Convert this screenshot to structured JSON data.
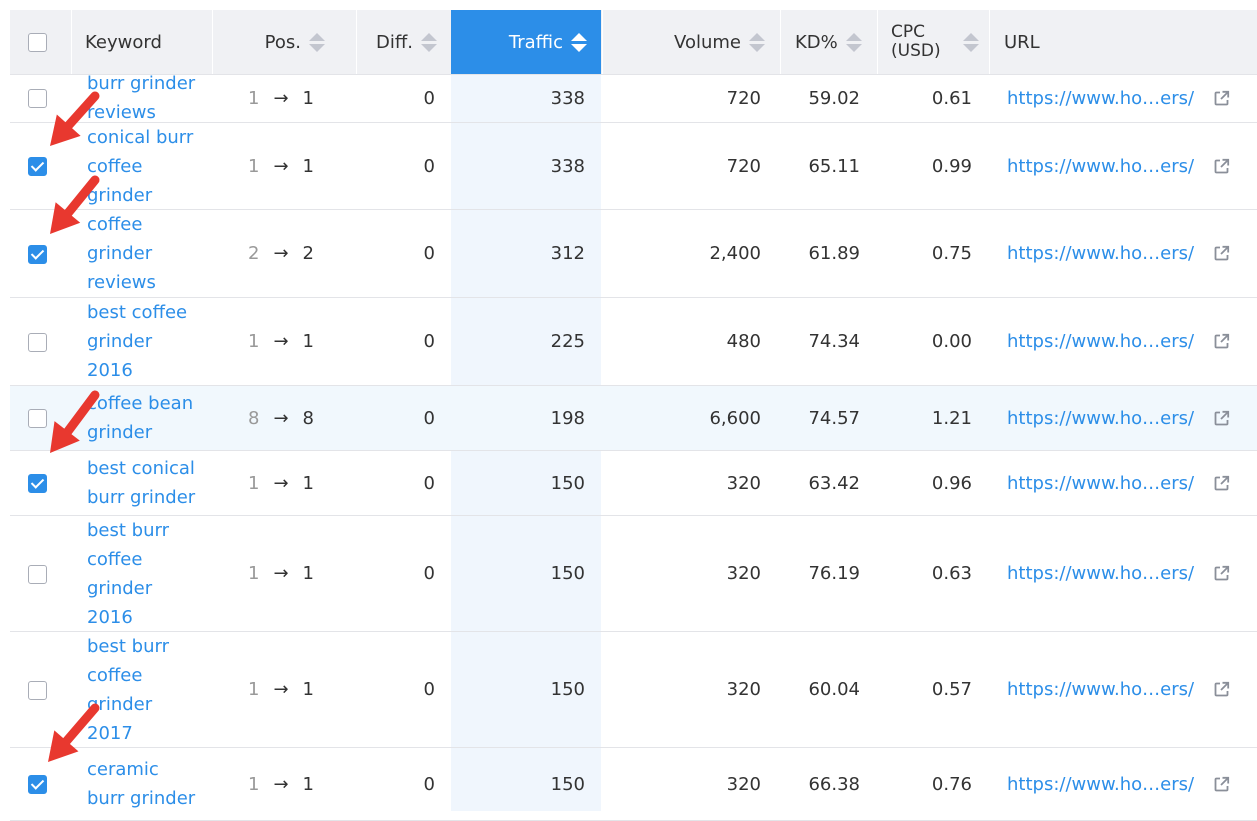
{
  "header": {
    "keyword": "Keyword",
    "pos": "Pos.",
    "diff": "Diff.",
    "traffic": "Traffic",
    "volume": "Volume",
    "kd": "KD%",
    "cpc_line1": "CPC",
    "cpc_line2": "(USD)",
    "url": "URL"
  },
  "rows": [
    {
      "keyword": "burr grinder reviews",
      "kw_lines": [
        "burr grinder",
        "reviews"
      ],
      "pos_from": "1",
      "pos_to": "1",
      "diff": "0",
      "traffic": "338",
      "volume": "720",
      "kd": "59.02",
      "cpc": "0.61",
      "url": "https://www.ho…ers/",
      "checked": false
    },
    {
      "keyword": "conical burr coffee grinder",
      "kw_lines": [
        "conical burr",
        "coffee",
        "grinder"
      ],
      "pos_from": "1",
      "pos_to": "1",
      "diff": "0",
      "traffic": "338",
      "volume": "720",
      "kd": "65.11",
      "cpc": "0.99",
      "url": "https://www.ho…ers/",
      "checked": true
    },
    {
      "keyword": "coffee grinder reviews",
      "kw_lines": [
        "coffee",
        "grinder",
        "reviews"
      ],
      "pos_from": "2",
      "pos_to": "2",
      "diff": "0",
      "traffic": "312",
      "volume": "2,400",
      "kd": "61.89",
      "cpc": "0.75",
      "url": "https://www.ho…ers/",
      "checked": true
    },
    {
      "keyword": "best coffee grinder 2016",
      "kw_lines": [
        "best coffee",
        "grinder",
        "2016"
      ],
      "pos_from": "1",
      "pos_to": "1",
      "diff": "0",
      "traffic": "225",
      "volume": "480",
      "kd": "74.34",
      "cpc": "0.00",
      "url": "https://www.ho…ers/",
      "checked": false
    },
    {
      "keyword": "coffee bean grinder",
      "kw_lines": [
        "coffee bean",
        "grinder"
      ],
      "pos_from": "8",
      "pos_to": "8",
      "diff": "0",
      "traffic": "198",
      "volume": "6,600",
      "kd": "74.57",
      "cpc": "1.21",
      "url": "https://www.ho…ers/",
      "checked": false
    },
    {
      "keyword": "best conical burr grinder",
      "kw_lines": [
        "best conical",
        "burr grinder"
      ],
      "pos_from": "1",
      "pos_to": "1",
      "diff": "0",
      "traffic": "150",
      "volume": "320",
      "kd": "63.42",
      "cpc": "0.96",
      "url": "https://www.ho…ers/",
      "checked": true
    },
    {
      "keyword": "best burr coffee grinder 2016",
      "kw_lines": [
        "best burr",
        "coffee",
        "grinder",
        "2016"
      ],
      "pos_from": "1",
      "pos_to": "1",
      "diff": "0",
      "traffic": "150",
      "volume": "320",
      "kd": "76.19",
      "cpc": "0.63",
      "url": "https://www.ho…ers/",
      "checked": false
    },
    {
      "keyword": "best burr coffee grinder 2017",
      "kw_lines": [
        "best burr",
        "coffee",
        "grinder",
        "2017"
      ],
      "pos_from": "1",
      "pos_to": "1",
      "diff": "0",
      "traffic": "150",
      "volume": "320",
      "kd": "60.04",
      "cpc": "0.57",
      "url": "https://www.ho…ers/",
      "checked": false
    },
    {
      "keyword": "ceramic burr grinder",
      "kw_lines": [
        "ceramic",
        "burr grinder"
      ],
      "pos_from": "1",
      "pos_to": "1",
      "diff": "0",
      "traffic": "150",
      "volume": "320",
      "kd": "66.38",
      "cpc": "0.76",
      "url": "https://www.ho…ers/",
      "checked": true
    }
  ],
  "icons": {
    "sort": "sort-icon",
    "external_link": "external-link-icon",
    "annotation_arrow": "red-arrow-annotation"
  },
  "colors": {
    "accent": "#2c8ee8",
    "header_bg": "#f0f1f4",
    "annotation": "#e8382f",
    "highlight_row": "#f1f8fd"
  }
}
